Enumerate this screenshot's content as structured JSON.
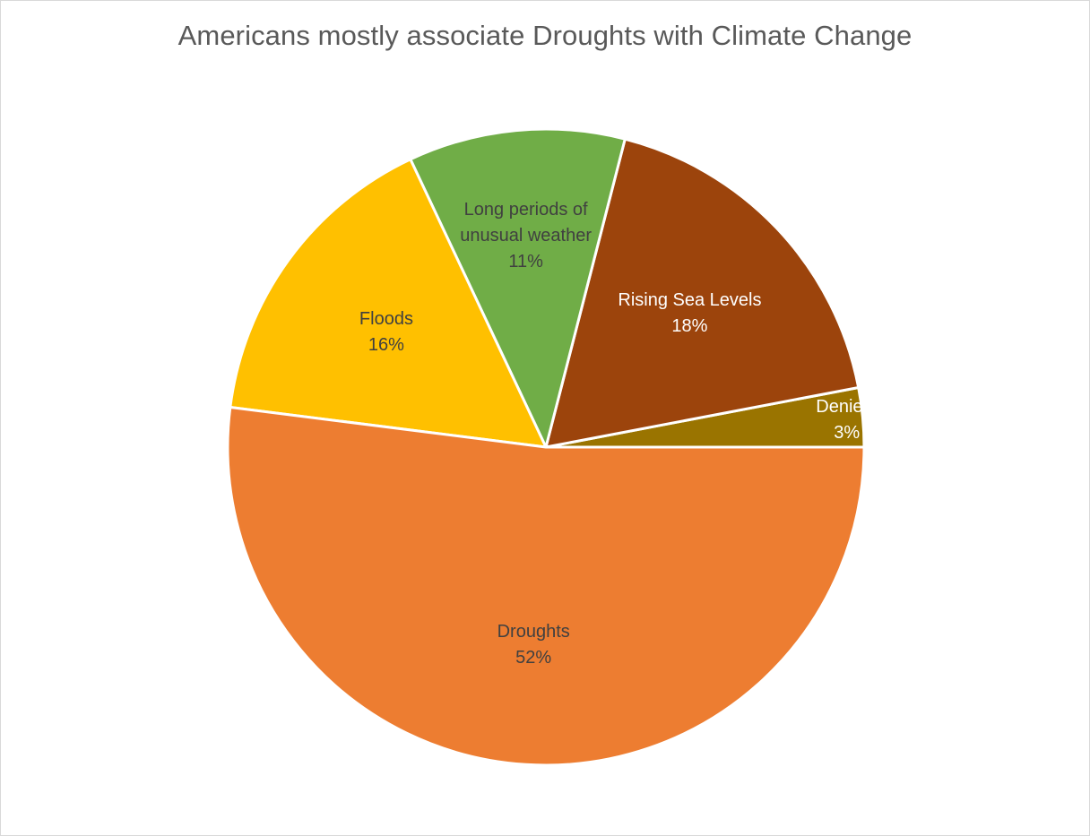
{
  "chart_data": {
    "type": "pie",
    "title": "Americans mostly associate Droughts with Climate Change",
    "slices": [
      {
        "label": "Deniers",
        "value": 3,
        "value_label": "3%",
        "color": "#9a7400",
        "text_color": "#ffffff"
      },
      {
        "label": "Rising Sea Levels",
        "value": 18,
        "value_label": "18%",
        "color": "#9c440c",
        "text_color": "#ffffff"
      },
      {
        "label": "Long periods of unusual weather",
        "label_lines": [
          "Long periods of",
          "unusual weather"
        ],
        "value": 11,
        "value_label": "11%",
        "color": "#70ad47",
        "text_color": "#404040"
      },
      {
        "label": "Floods",
        "value": 16,
        "value_label": "16%",
        "color": "#ffc000",
        "text_color": "#404040"
      },
      {
        "label": "Droughts",
        "value": 52,
        "value_label": "52%",
        "color": "#ed7d31",
        "text_color": "#404040"
      }
    ],
    "start_angle_deg": 0,
    "direction": "counterclockwise",
    "data_labels": "inside",
    "legend": "none"
  }
}
